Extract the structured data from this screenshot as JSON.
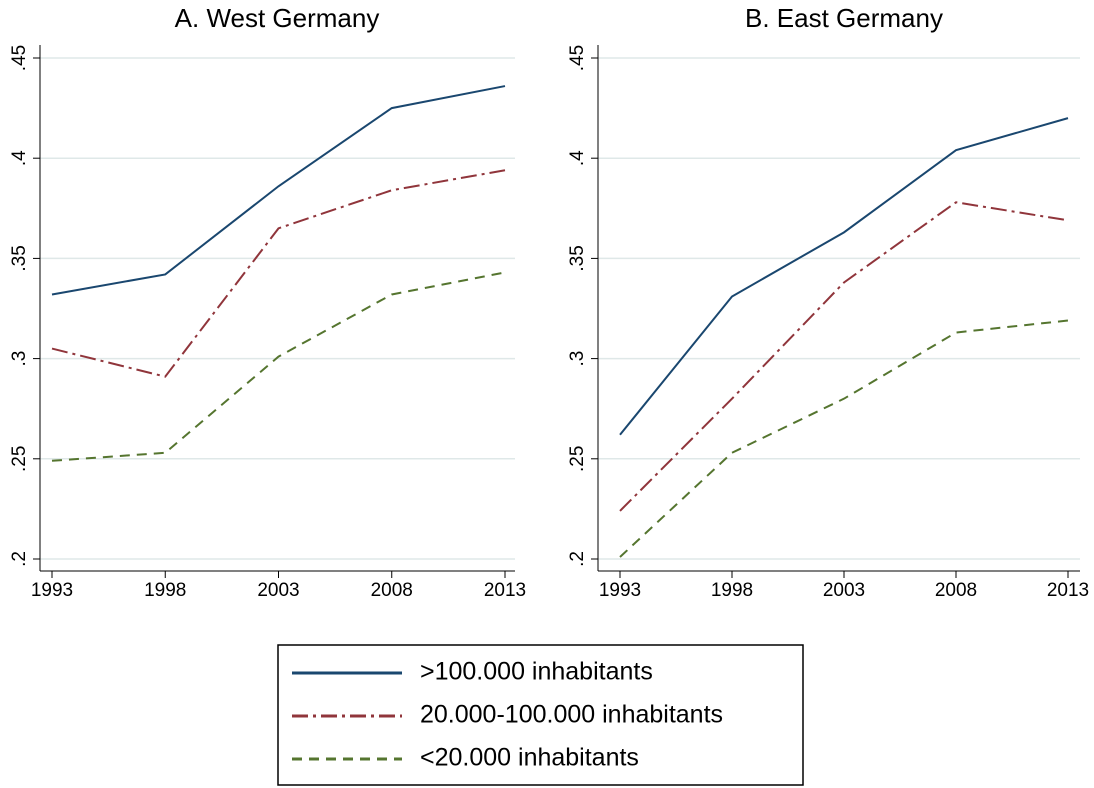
{
  "chart_data": [
    {
      "type": "line",
      "title": "A. West Germany",
      "x": [
        1993,
        1998,
        2003,
        2008,
        2013
      ],
      "xlim": [
        1993,
        2013
      ],
      "xticks": [
        1993,
        1998,
        2003,
        2008,
        2013
      ],
      "ylim": [
        0.2,
        0.45
      ],
      "yticks": [
        {
          "value": 0.2,
          "label": ".2"
        },
        {
          "value": 0.25,
          "label": ".25"
        },
        {
          "value": 0.3,
          "label": ".3"
        },
        {
          "value": 0.35,
          "label": ".35"
        },
        {
          "value": 0.4,
          "label": ".4"
        },
        {
          "value": 0.45,
          "label": ".45"
        }
      ],
      "grid": true,
      "series": [
        {
          "name": ">100.000 inhabitants",
          "color": "#1a476f",
          "style": "solid",
          "values": [
            0.332,
            0.342,
            0.386,
            0.425,
            0.436
          ]
        },
        {
          "name": "20.000-100.000 inhabitants",
          "color": "#90353b",
          "style": "dashdot",
          "values": [
            0.305,
            0.291,
            0.365,
            0.384,
            0.394
          ]
        },
        {
          "name": "<20.000 inhabitants",
          "color": "#55752f",
          "style": "dash",
          "values": [
            0.249,
            0.253,
            0.301,
            0.332,
            0.343
          ]
        }
      ]
    },
    {
      "type": "line",
      "title": "B. East Germany",
      "x": [
        1993,
        1998,
        2003,
        2008,
        2013
      ],
      "xlim": [
        1993,
        2013
      ],
      "xticks": [
        1993,
        1998,
        2003,
        2008,
        2013
      ],
      "ylim": [
        0.2,
        0.45
      ],
      "yticks": [
        {
          "value": 0.2,
          "label": ".2"
        },
        {
          "value": 0.25,
          "label": ".25"
        },
        {
          "value": 0.3,
          "label": ".3"
        },
        {
          "value": 0.35,
          "label": ".35"
        },
        {
          "value": 0.4,
          "label": ".4"
        },
        {
          "value": 0.45,
          "label": ".45"
        }
      ],
      "grid": true,
      "series": [
        {
          "color": "#1a476f",
          "style": "solid",
          "values": [
            0.262,
            0.331,
            0.363,
            0.404,
            0.42
          ]
        },
        {
          "color": "#90353b",
          "style": "dashdot",
          "values": [
            0.224,
            0.28,
            0.338,
            0.378,
            0.369
          ]
        },
        {
          "color": "#55752f",
          "style": "dash",
          "values": [
            0.201,
            0.253,
            0.28,
            0.313,
            0.319
          ]
        }
      ]
    }
  ]
}
